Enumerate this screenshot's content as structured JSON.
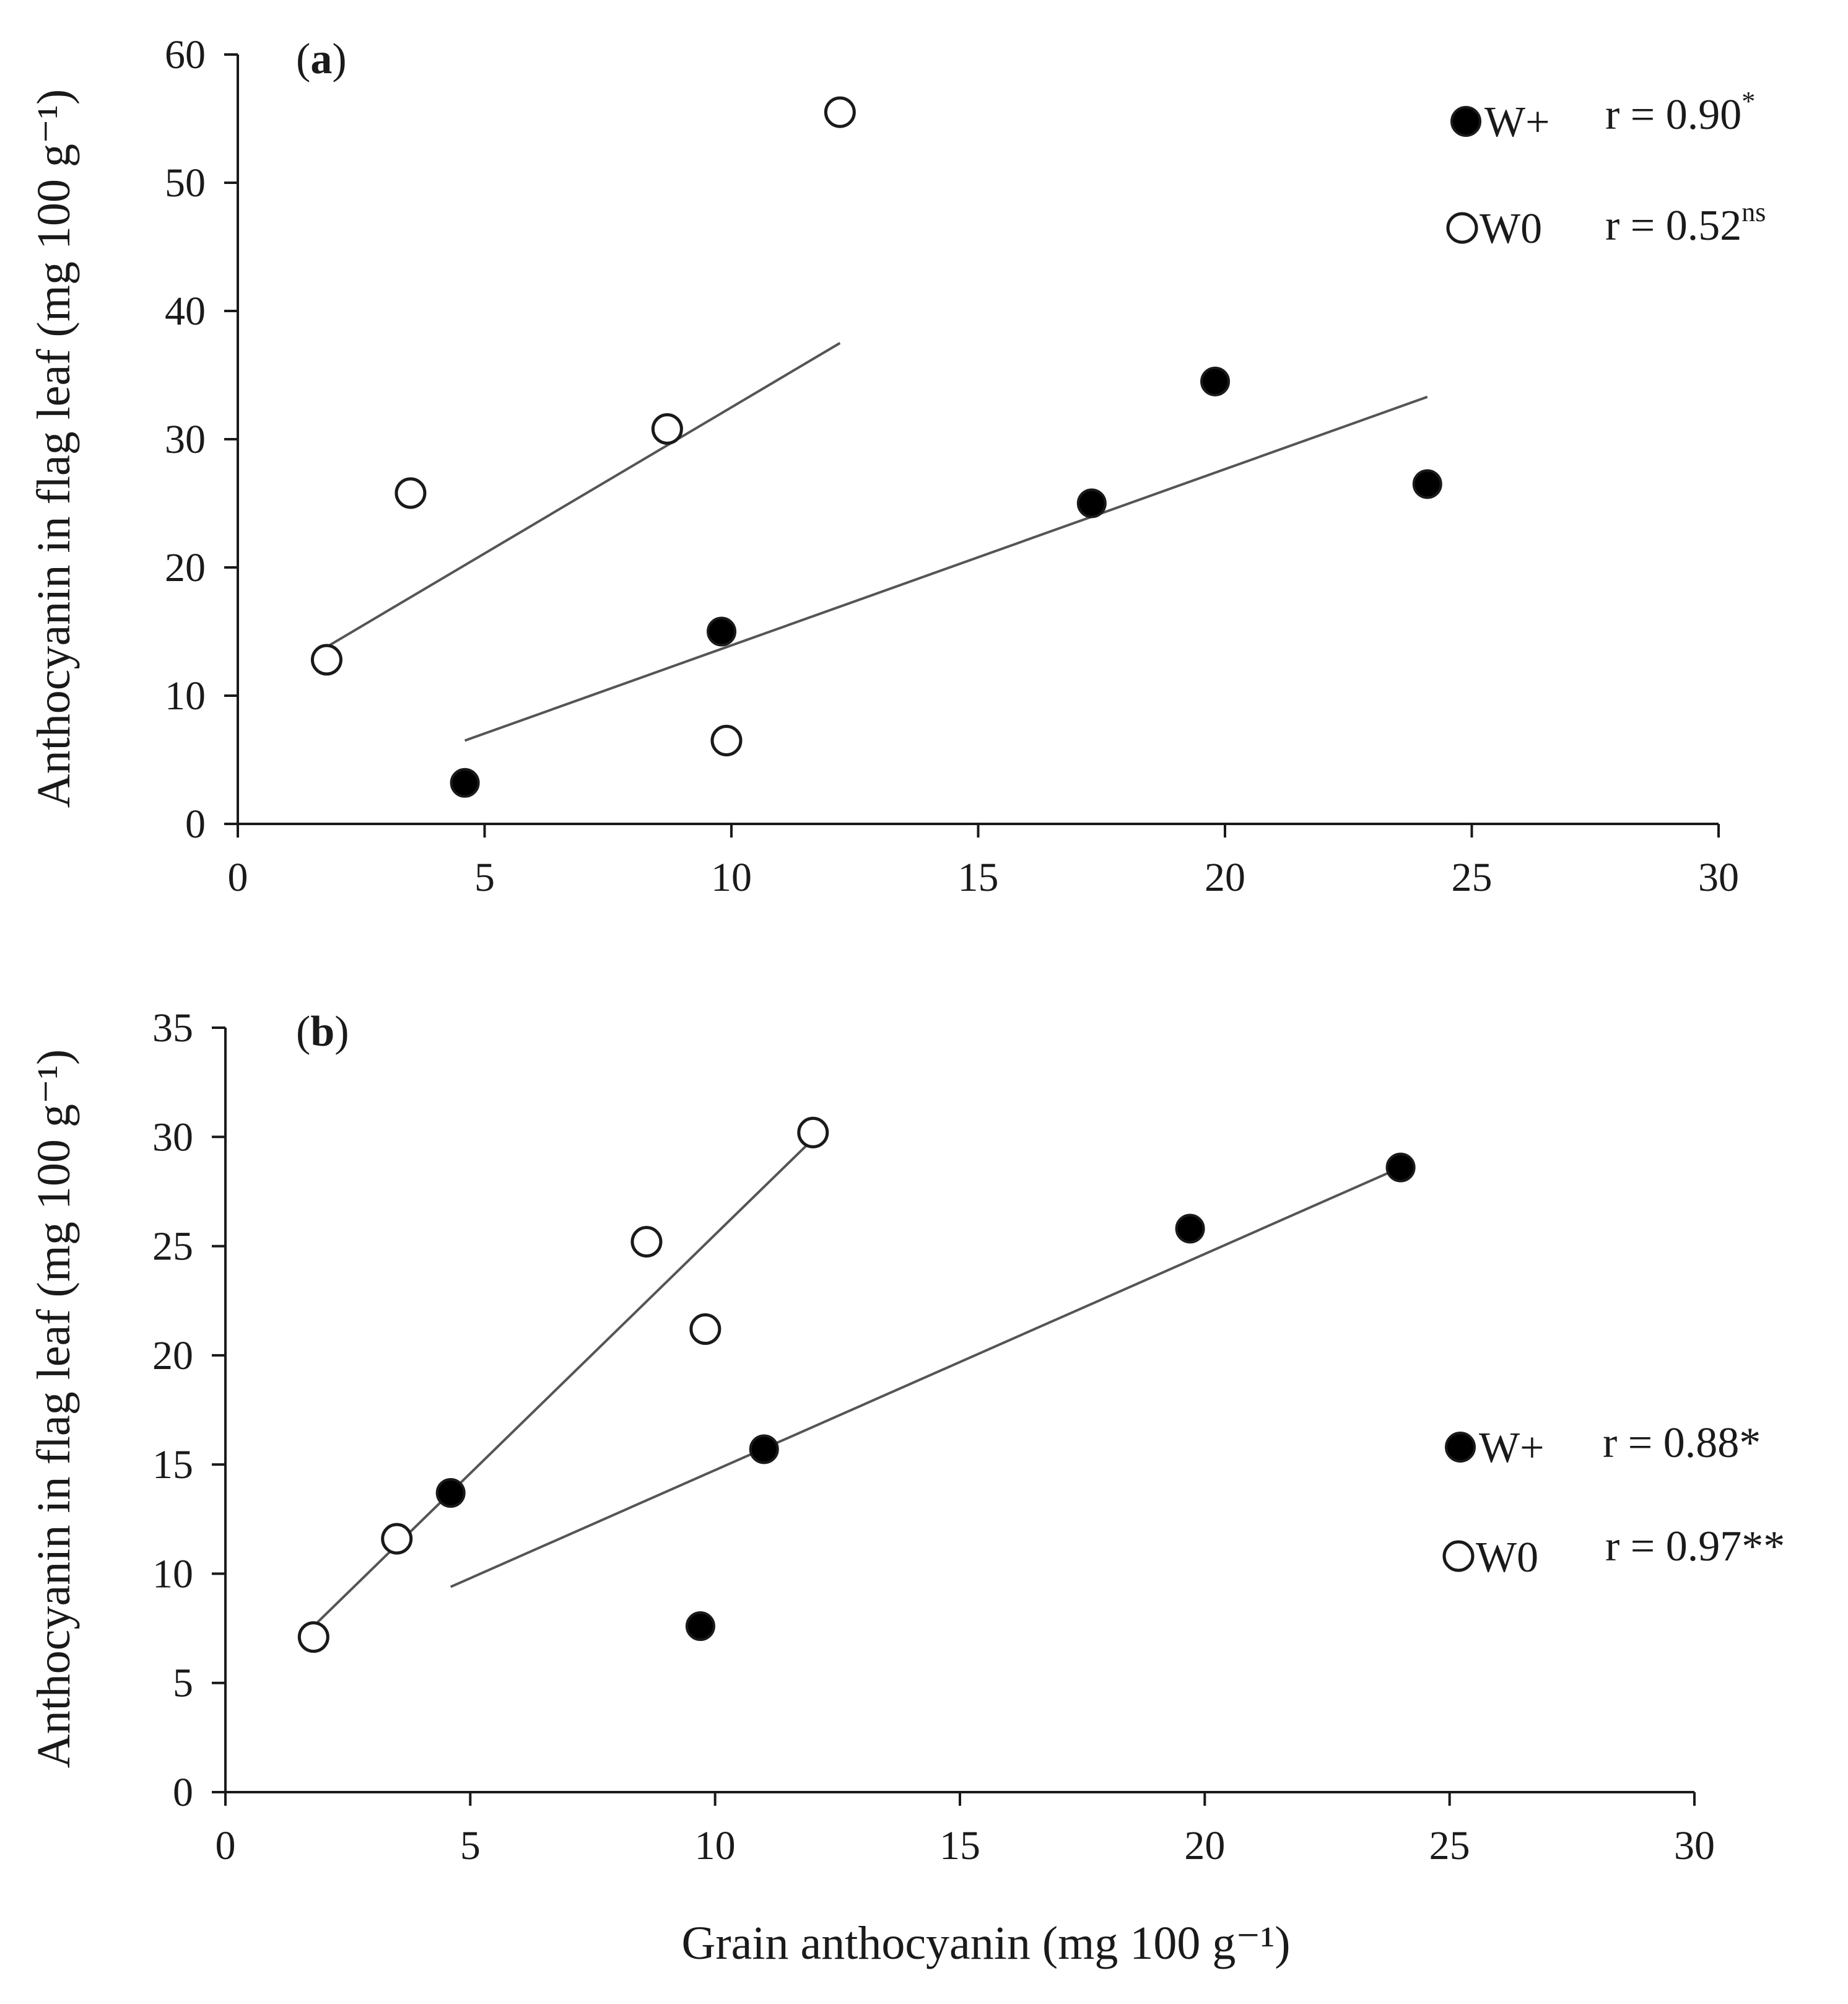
{
  "figure": {
    "xlabel_shared": "Grain anthocyanin (mg 100 g⁻¹)",
    "colors": {
      "axis": "#1a1a1a",
      "trend": "#555555",
      "marker_stroke": "#1a1a1a",
      "filled": "#000000",
      "open": "#ffffff"
    }
  },
  "chart_data": [
    {
      "type": "scatter",
      "panel": "a",
      "panel_label": {
        "open": "(",
        "letter": "a",
        "close": ")"
      },
      "ylabel": "Anthocyanin in flag leaf (mg 100 g⁻¹)",
      "xlabel": "Grain anthocyanin (mg 100 g⁻¹)",
      "xlim": [
        0,
        30
      ],
      "ylim": [
        0,
        60
      ],
      "xticks": [
        0,
        5,
        10,
        15,
        20,
        25,
        30
      ],
      "yticks": [
        0,
        10,
        20,
        30,
        40,
        50,
        60
      ],
      "legend_position": "top-right",
      "series": [
        {
          "name": "W+",
          "marker": "filled-circle",
          "r_label": "r = 0.90",
          "r_sig": "*",
          "x": [
            4.6,
            9.8,
            17.3,
            19.8,
            24.1
          ],
          "y": [
            3.2,
            15.0,
            25.0,
            34.5,
            26.5
          ],
          "trendline": {
            "x": [
              4.6,
              24.1
            ],
            "y": [
              6.5,
              33.3
            ]
          }
        },
        {
          "name": "W0",
          "marker": "open-circle",
          "r_label": "r = 0.52",
          "r_sig": "ns",
          "x": [
            1.8,
            3.5,
            8.7,
            9.9,
            12.2
          ],
          "y": [
            12.8,
            25.8,
            30.8,
            6.5,
            55.5
          ],
          "trendline": {
            "x": [
              1.8,
              12.2
            ],
            "y": [
              13.8,
              37.5
            ]
          }
        }
      ]
    },
    {
      "type": "scatter",
      "panel": "b",
      "panel_label": {
        "open": "(",
        "letter": "b",
        "close": ")"
      },
      "ylabel": "Anthocyanin in flag leaf (mg 100 g⁻¹)",
      "xlabel": "Grain anthocyanin (mg 100 g⁻¹)",
      "xlim": [
        0,
        30
      ],
      "ylim": [
        0,
        35
      ],
      "xticks": [
        0,
        5,
        10,
        15,
        20,
        25,
        30
      ],
      "yticks": [
        0,
        5,
        10,
        15,
        20,
        25,
        30,
        35
      ],
      "legend_position": "right",
      "series": [
        {
          "name": "W+",
          "marker": "filled-circle",
          "r_label": "r = 0.88*",
          "r_sig": "",
          "x": [
            4.6,
            9.7,
            11.0,
            19.7,
            24.0
          ],
          "y": [
            13.7,
            7.6,
            15.7,
            25.8,
            28.6
          ],
          "trendline": {
            "x": [
              4.6,
              24.0
            ],
            "y": [
              9.4,
              28.6
            ]
          }
        },
        {
          "name": "W0",
          "marker": "open-circle",
          "r_label": "r = 0.97**",
          "r_sig": "",
          "x": [
            1.8,
            3.5,
            8.6,
            9.8,
            12.0
          ],
          "y": [
            7.1,
            11.6,
            25.2,
            21.2,
            30.2
          ],
          "trendline": {
            "x": [
              1.8,
              12.0
            ],
            "y": [
              7.6,
              29.9
            ]
          }
        }
      ]
    }
  ]
}
